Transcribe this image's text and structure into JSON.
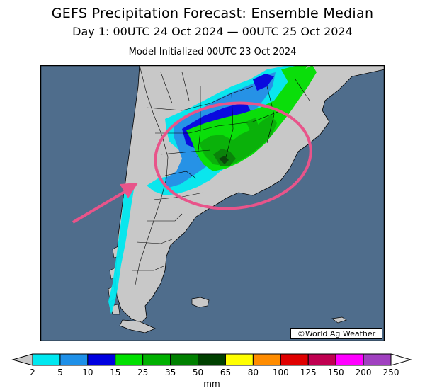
{
  "header": {
    "title": "GEFS Precipitation Forecast: Ensemble Median",
    "valid_period": "Day 1: 00UTC 24 Oct 2024 — 00UTC 25 Oct 2024",
    "initialized": "Model Initialized 00UTC 23 Oct 2024"
  },
  "credit": "©World Ag Weather",
  "legend": {
    "unit": "mm",
    "ticks": [
      "2",
      "5",
      "10",
      "15",
      "25",
      "35",
      "50",
      "65",
      "80",
      "100",
      "125",
      "150",
      "200",
      "250"
    ],
    "colors": [
      "#00e8f0",
      "#1e90e8",
      "#0000e0",
      "#00e000",
      "#00b000",
      "#008000",
      "#004000",
      "#ffff00",
      "#ff8c00",
      "#e00000",
      "#c00050",
      "#ff00ff",
      "#a040c0"
    ],
    "under_color": "#c8c8c8",
    "over_color": "#ffffff"
  },
  "colors": {
    "ocean": "#4f6d8c",
    "land": "#c8c8c8",
    "annotation": "#e8548a"
  }
}
